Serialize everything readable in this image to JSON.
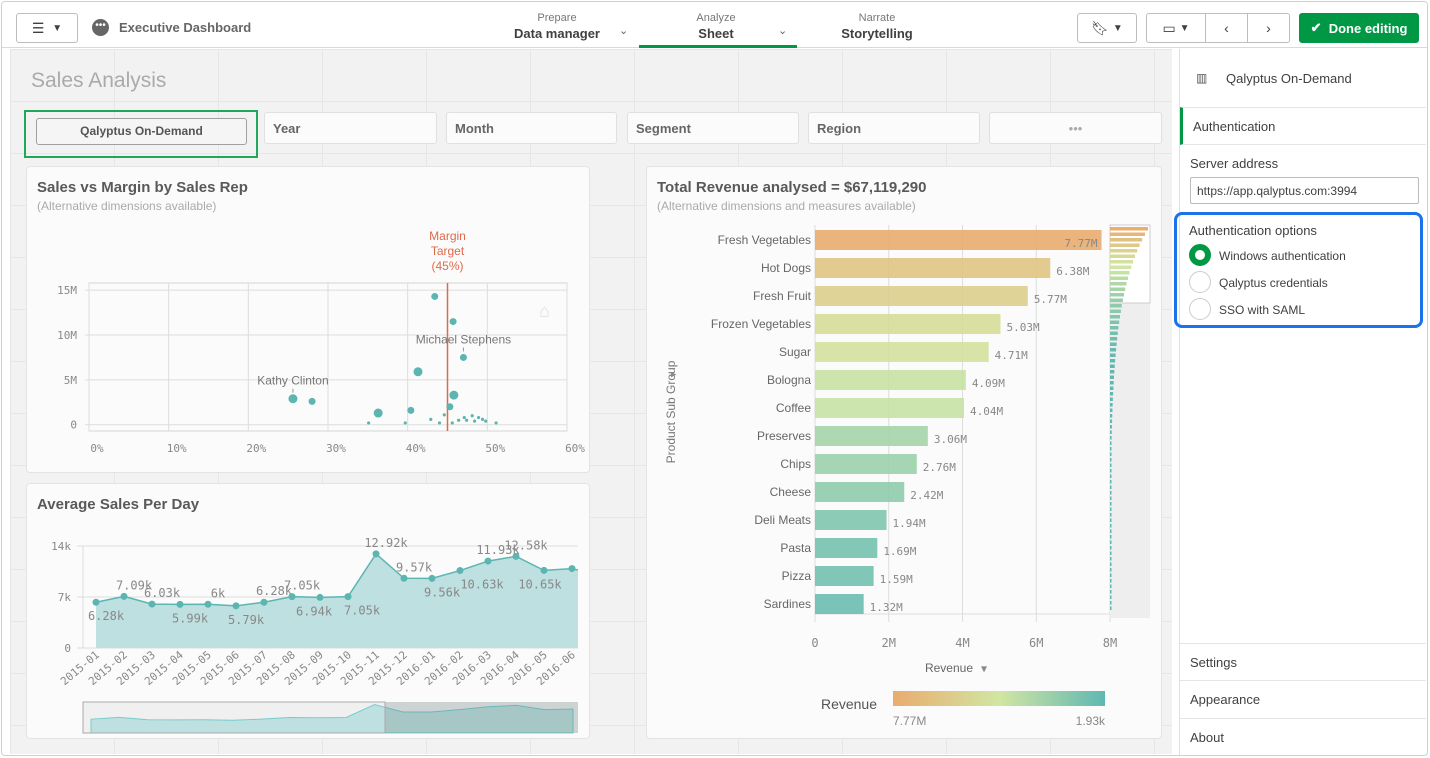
{
  "topbar": {
    "app_title": "Executive Dashboard",
    "nav": [
      {
        "small": "Prepare",
        "label": "Data manager"
      },
      {
        "small": "Analyze",
        "label": "Sheet"
      },
      {
        "small": "Narrate",
        "label": "Storytelling"
      }
    ],
    "done_label": "Done editing",
    "accent": "#009845"
  },
  "sheet": {
    "title": "Sales Analysis"
  },
  "filters": [
    {
      "label": "Qalyptus On-Demand"
    },
    {
      "label": "Year"
    },
    {
      "label": "Month"
    },
    {
      "label": "Segment"
    },
    {
      "label": "Region"
    },
    {
      "label": "•••"
    }
  ],
  "chart_data": [
    {
      "type": "scatter",
      "title": "Sales vs Margin by Sales Rep",
      "subtitle": "(Alternative dimensions available)",
      "x_ticks": [
        "0%",
        "10%",
        "20%",
        "30%",
        "40%",
        "50%",
        "60%"
      ],
      "y_ticks": [
        "0",
        "5M",
        "10M",
        "15M"
      ],
      "xlim": [
        0,
        60
      ],
      "ylim": [
        -0.7,
        15.8
      ],
      "reference_line": {
        "x": 45,
        "label": [
          "Margin",
          "Target",
          "(45%)"
        ],
        "color": "#e0694a"
      },
      "annotations": [
        {
          "label": "Kathy Clinton",
          "x": 25.6,
          "y": 2.9
        },
        {
          "label": "Michael Stephens",
          "x": 47.0,
          "y": 7.5
        }
      ],
      "points": [
        [
          25.6,
          2.9
        ],
        [
          28.0,
          2.6
        ],
        [
          36.3,
          1.3
        ],
        [
          41.3,
          5.9
        ],
        [
          43.4,
          14.3
        ],
        [
          45.7,
          11.5
        ],
        [
          47.0,
          7.5
        ],
        [
          45.8,
          3.3
        ],
        [
          45.3,
          2.0
        ],
        [
          40.4,
          1.6
        ],
        [
          44.6,
          1.1
        ],
        [
          47.1,
          0.8
        ],
        [
          48.1,
          1.0
        ],
        [
          48.9,
          0.8
        ],
        [
          49.4,
          0.6
        ],
        [
          46.4,
          0.5
        ],
        [
          42.9,
          0.6
        ],
        [
          48.4,
          0.4
        ],
        [
          49.8,
          0.4
        ],
        [
          51.1,
          0.2
        ],
        [
          35.1,
          0.2
        ],
        [
          39.7,
          0.2
        ],
        [
          44.0,
          0.2
        ],
        [
          45.6,
          0.2
        ],
        [
          47.4,
          0.5
        ]
      ],
      "color": "#5bb5b0"
    },
    {
      "type": "area",
      "title": "Average Sales Per Day",
      "categories": [
        "2015-01",
        "2015-02",
        "2015-03",
        "2015-04",
        "2015-05",
        "2015-06",
        "2015-07",
        "2015-08",
        "2015-09",
        "2015-10",
        "2015-11",
        "2015-12",
        "2016-01",
        "2016-02",
        "2016-03",
        "2016-04",
        "2016-05",
        "2016-06"
      ],
      "values": [
        6.28,
        7.09,
        6.03,
        5.99,
        6.0,
        5.79,
        6.28,
        7.05,
        6.94,
        7.05,
        12.92,
        9.57,
        9.56,
        10.63,
        11.93,
        12.58,
        10.65,
        10.9
      ],
      "labels": [
        "6.28k",
        "7.09k",
        "6.03k",
        "5.99k",
        "6k",
        "5.79k",
        "6.28k",
        "7.05k",
        "6.94k",
        "7.05k",
        "12.92k",
        "9.57k",
        "9.56k",
        "10.63k",
        "11.93k",
        "12.58k",
        "10.65k",
        ""
      ],
      "y_ticks": [
        "0",
        "7k",
        "14k"
      ],
      "ylim": [
        0,
        14
      ],
      "color": "#5bb5b0"
    },
    {
      "type": "bar",
      "title": "Total Revenue analysed = $67,119,290",
      "subtitle": "(Alternative dimensions and measures available)",
      "ylabel": "Product Sub Group",
      "xlabel": "Revenue",
      "categories": [
        "Fresh Vegetables",
        "Hot Dogs",
        "Fresh Fruit",
        "Frozen Vegetables",
        "Sugar",
        "Bologna",
        "Coffee",
        "Preserves",
        "Chips",
        "Cheese",
        "Deli Meats",
        "Pasta",
        "Pizza",
        "Sardines"
      ],
      "values": [
        7.77,
        6.38,
        5.77,
        5.03,
        4.71,
        4.09,
        4.04,
        3.06,
        2.76,
        2.42,
        1.94,
        1.69,
        1.59,
        1.32
      ],
      "labels": [
        "7.77M",
        "6.38M",
        "5.77M",
        "5.03M",
        "4.71M",
        "4.09M",
        "4.04M",
        "3.06M",
        "2.76M",
        "2.42M",
        "1.94M",
        "1.69M",
        "1.59M",
        "1.32M"
      ],
      "x_ticks": [
        "0",
        "2M",
        "4M",
        "6M",
        "8M"
      ],
      "xlim": [
        0,
        8
      ],
      "legend": {
        "title": "Revenue",
        "min_label": "7.77M",
        "max_label": "1.93k",
        "colors": [
          "#e9ac6e",
          "#d2e6a2",
          "#5fb8b2"
        ]
      }
    }
  ],
  "panel": {
    "header": "Qalyptus On-Demand",
    "section": "Authentication",
    "server_label": "Server address",
    "server_value": "https://app.qalyptus.com:3994",
    "options_label": "Authentication options",
    "options": [
      {
        "label": "Windows authentication",
        "selected": true
      },
      {
        "label": "Qalyptus credentials",
        "selected": false
      },
      {
        "label": "SSO with SAML",
        "selected": false
      }
    ],
    "bottom": [
      "Settings",
      "Appearance",
      "About"
    ],
    "highlight": "#1a73e8"
  }
}
